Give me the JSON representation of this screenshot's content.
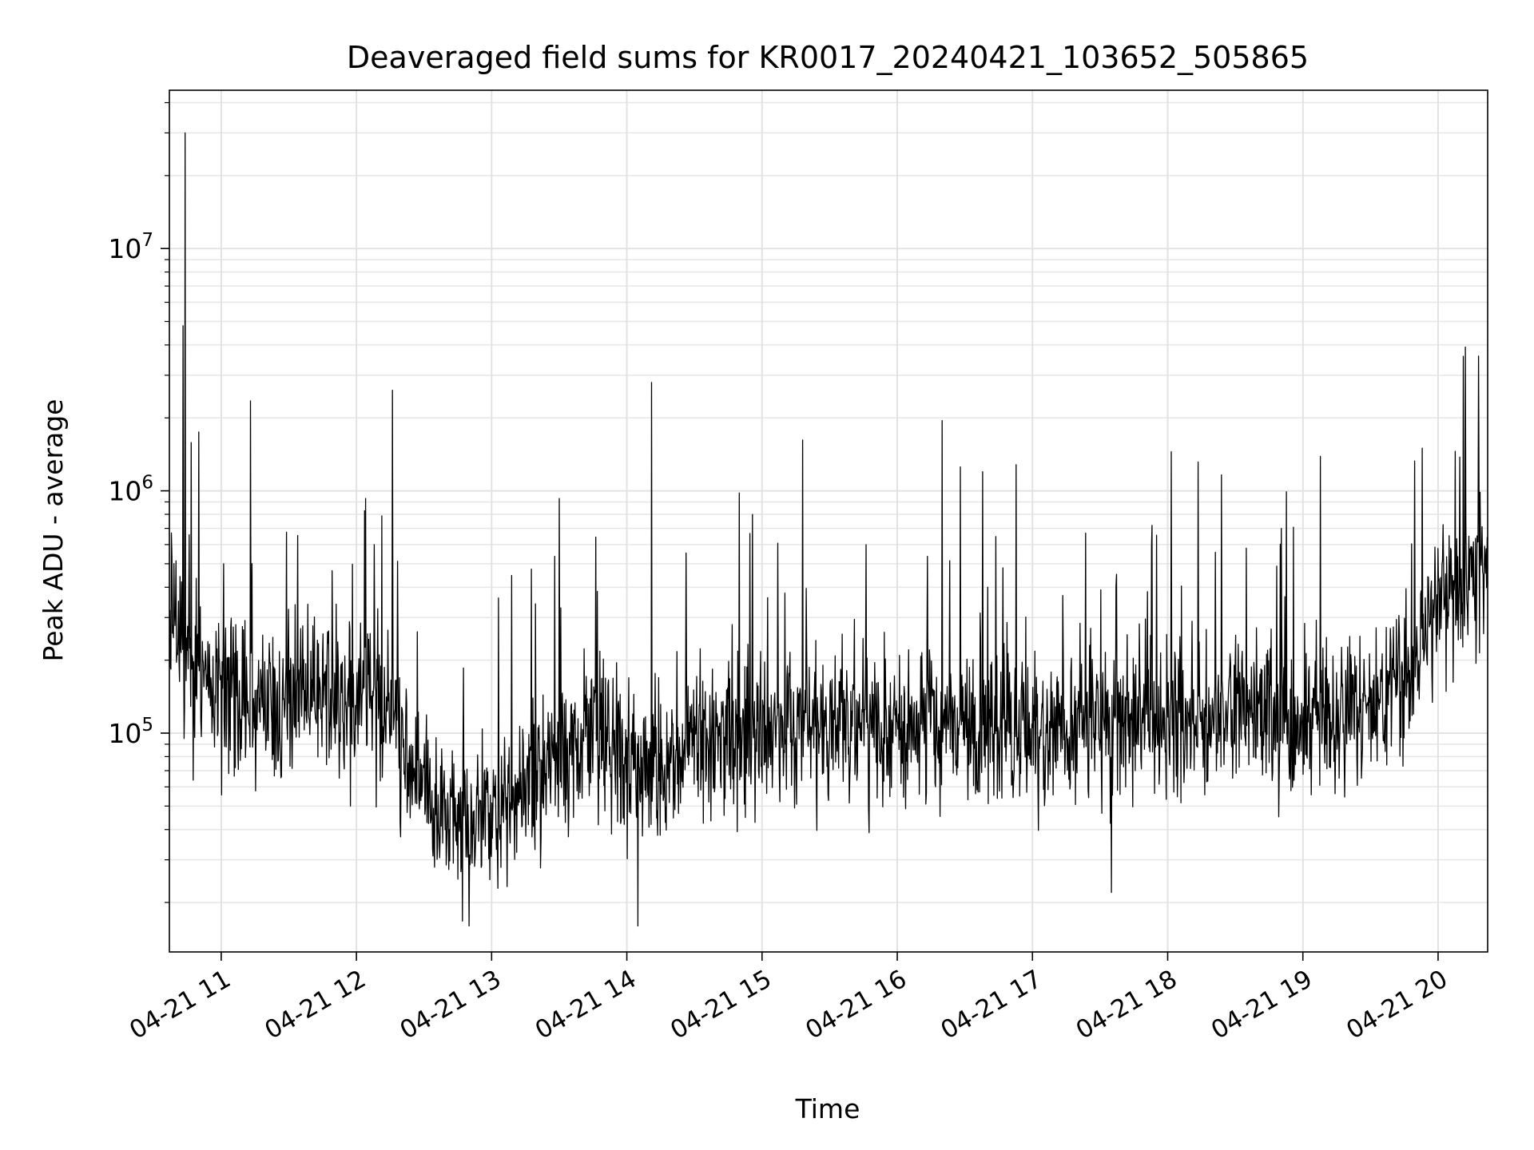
{
  "chart_data": {
    "type": "line",
    "title": "Deaveraged field sums for KR0017_20240421_103652_505865",
    "xlabel": "Time",
    "ylabel": "Peak ADU - average",
    "yscale": "log",
    "ylim": [
      12500,
      45000000
    ],
    "xlim": [
      "2024-04-21 10:37",
      "2024-04-21 20:22"
    ],
    "grid": true,
    "x_ticks": [
      "04-21 11",
      "04-21 12",
      "04-21 13",
      "04-21 14",
      "04-21 15",
      "04-21 16",
      "04-21 17",
      "04-21 18",
      "04-21 19",
      "04-21 20"
    ],
    "y_ticks": [
      {
        "value": 100000,
        "base": "10",
        "exp": "5"
      },
      {
        "value": 1000000,
        "base": "10",
        "exp": "6"
      },
      {
        "value": 10000000,
        "base": "10",
        "exp": "7"
      }
    ],
    "line_color": "#000000",
    "anchors": [
      {
        "t": "2024-04-21 10:37",
        "v": 300000
      },
      {
        "t": "2024-04-21 10:45",
        "v": 180000
      },
      {
        "t": "2024-04-21 11:15",
        "v": 120000
      },
      {
        "t": "2024-04-21 11:45",
        "v": 150000
      },
      {
        "t": "2024-04-21 12:15",
        "v": 130000
      },
      {
        "t": "2024-04-21 12:25",
        "v": 65000
      },
      {
        "t": "2024-04-21 12:50",
        "v": 40000
      },
      {
        "t": "2024-04-21 13:15",
        "v": 60000
      },
      {
        "t": "2024-04-21 13:40",
        "v": 100000
      },
      {
        "t": "2024-04-21 14:00",
        "v": 70000
      },
      {
        "t": "2024-04-21 14:30",
        "v": 85000
      },
      {
        "t": "2024-04-21 15:00",
        "v": 100000
      },
      {
        "t": "2024-04-21 15:30",
        "v": 110000
      },
      {
        "t": "2024-04-21 16:00",
        "v": 105000
      },
      {
        "t": "2024-04-21 16:30",
        "v": 110000
      },
      {
        "t": "2024-04-21 17:00",
        "v": 100000
      },
      {
        "t": "2024-04-21 17:30",
        "v": 120000
      },
      {
        "t": "2024-04-21 18:00",
        "v": 110000
      },
      {
        "t": "2024-04-21 18:30",
        "v": 120000
      },
      {
        "t": "2024-04-21 19:00",
        "v": 110000
      },
      {
        "t": "2024-04-21 19:30",
        "v": 130000
      },
      {
        "t": "2024-04-21 19:50",
        "v": 200000
      },
      {
        "t": "2024-04-21 20:10",
        "v": 450000
      },
      {
        "t": "2024-04-21 20:22",
        "v": 500000
      }
    ],
    "spikes": [
      {
        "t": "2024-04-21 10:44",
        "v": 30000000
      },
      {
        "t": "2024-04-21 10:43",
        "v": 4800000
      },
      {
        "t": "2024-04-21 10:50",
        "v": 1750000
      },
      {
        "t": "2024-04-21 11:13",
        "v": 2350000
      },
      {
        "t": "2024-04-21 12:16",
        "v": 2600000
      },
      {
        "t": "2024-04-21 13:30",
        "v": 930000
      },
      {
        "t": "2024-04-21 14:11",
        "v": 2800000
      },
      {
        "t": "2024-04-21 14:50",
        "v": 980000
      },
      {
        "t": "2024-04-21 15:18",
        "v": 1620000
      },
      {
        "t": "2024-04-21 16:20",
        "v": 1950000
      },
      {
        "t": "2024-04-21 16:38",
        "v": 1200000
      },
      {
        "t": "2024-04-21 17:53",
        "v": 720000
      },
      {
        "t": "2024-04-21 18:35",
        "v": 580000
      },
      {
        "t": "2024-04-21 19:53",
        "v": 1500000
      },
      {
        "t": "2024-04-21 20:18",
        "v": 3600000
      },
      {
        "t": "2024-04-21 12:50",
        "v": 16000
      },
      {
        "t": "2024-04-21 14:05",
        "v": 16000
      },
      {
        "t": "2024-04-21 17:35",
        "v": 22000
      }
    ]
  }
}
